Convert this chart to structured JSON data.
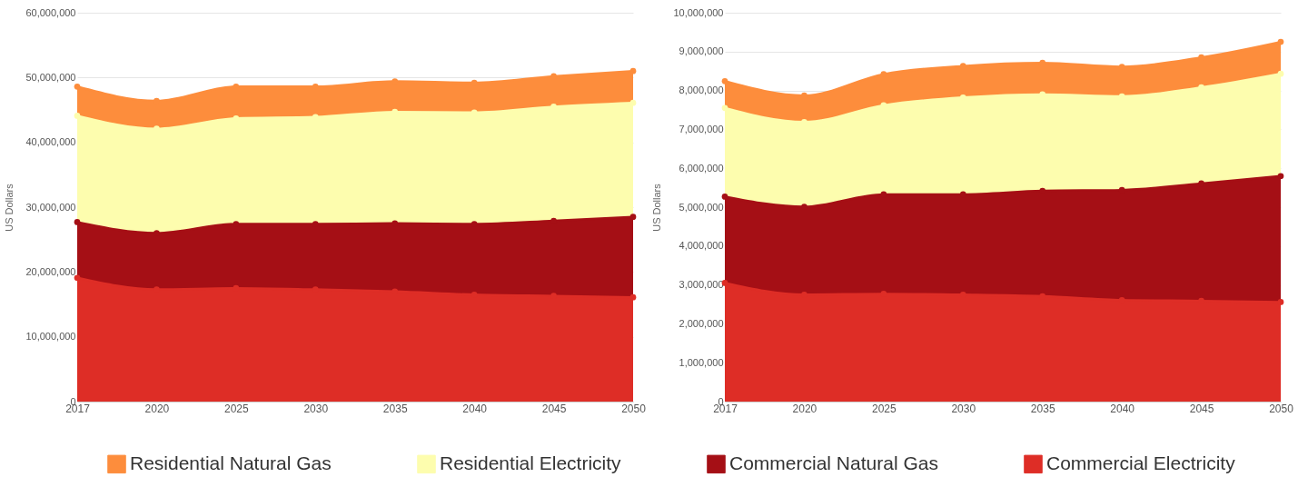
{
  "chart_data": [
    {
      "type": "area",
      "ylabel": "US Dollars",
      "categories": [
        "2017",
        "2020",
        "2025",
        "2030",
        "2035",
        "2040",
        "2045",
        "2050"
      ],
      "stacked": true,
      "ylim": [
        0,
        60000000
      ],
      "yticks": [
        {
          "value": 0,
          "label": "0"
        },
        {
          "value": 10000000,
          "label": "10,000,000"
        },
        {
          "value": 20000000,
          "label": "20,000,000"
        },
        {
          "value": 30000000,
          "label": "30,000,000"
        },
        {
          "value": 40000000,
          "label": "40,000,000"
        },
        {
          "value": 50000000,
          "label": "50,000,000"
        },
        {
          "value": 60000000,
          "label": "60,000,000"
        }
      ],
      "grid": "y",
      "legend": "bottom",
      "marker": "circle",
      "line_style": "solid",
      "series": [
        {
          "name": "Commercial Electricity",
          "color": "#de2d26",
          "values": [
            19100000,
            17300000,
            17500000,
            17300000,
            17000000,
            16500000,
            16300000,
            16100000
          ]
        },
        {
          "name": "Commercial Natural Gas",
          "color": "#a50f15",
          "values": [
            8600000,
            8700000,
            9900000,
            10100000,
            10500000,
            10900000,
            11600000,
            12400000
          ]
        },
        {
          "name": "Residential Electricity",
          "color": "#fdfdae",
          "values": [
            16400000,
            16100000,
            16300000,
            16500000,
            17200000,
            17200000,
            17600000,
            17600000
          ]
        },
        {
          "name": "Residential Natural Gas",
          "color": "#fd8d3c",
          "values": [
            4500000,
            4300000,
            4900000,
            4700000,
            4700000,
            4600000,
            4700000,
            4900000
          ]
        }
      ]
    },
    {
      "type": "area",
      "ylabel": "US Dollars",
      "categories": [
        "2017",
        "2020",
        "2025",
        "2030",
        "2035",
        "2040",
        "2045",
        "2050"
      ],
      "stacked": true,
      "ylim": [
        0,
        10000000
      ],
      "yticks": [
        {
          "value": 0,
          "label": "0"
        },
        {
          "value": 1000000,
          "label": "1,000,000"
        },
        {
          "value": 2000000,
          "label": "2,000,000"
        },
        {
          "value": 3000000,
          "label": "3,000,000"
        },
        {
          "value": 4000000,
          "label": "4,000,000"
        },
        {
          "value": 5000000,
          "label": "5,000,000"
        },
        {
          "value": 6000000,
          "label": "6,000,000"
        },
        {
          "value": 7000000,
          "label": "7,000,000"
        },
        {
          "value": 8000000,
          "label": "8,000,000"
        },
        {
          "value": 9000000,
          "label": "9,000,000"
        },
        {
          "value": 10000000,
          "label": "10,000,000"
        }
      ],
      "grid": "y",
      "marker": "circle",
      "line_style": "solid",
      "series": [
        {
          "color": "#de2d26",
          "values": [
            3050000,
            2750000,
            2770000,
            2750000,
            2710000,
            2610000,
            2590000,
            2560000
          ]
        },
        {
          "color": "#a50f15",
          "values": [
            2220000,
            2260000,
            2560000,
            2580000,
            2710000,
            2830000,
            3020000,
            3240000
          ]
        },
        {
          "color": "#fdfdae",
          "values": [
            2280000,
            2180000,
            2290000,
            2490000,
            2480000,
            2410000,
            2470000,
            2630000
          ]
        },
        {
          "color": "#fd8d3c",
          "values": [
            690000,
            680000,
            800000,
            810000,
            810000,
            760000,
            770000,
            820000
          ]
        }
      ]
    }
  ]
}
